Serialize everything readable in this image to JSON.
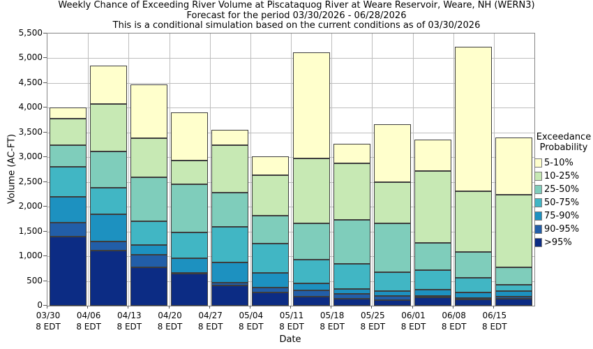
{
  "chart_data": {
    "type": "bar",
    "stacked": true,
    "title_lines": [
      "Weekly Chance of Exceeding River Volume at Piscataquog River at Weare Reservoir, Weare, NH (WERN3)",
      "Forecast for the period 03/30/2026 - 06/28/2026",
      "This is a conditional simulation based on the current conditions as of 03/30/2026"
    ],
    "xlabel": "Date",
    "ylabel": "Volume (AC-FT)",
    "ylim": [
      0,
      5500
    ],
    "yticks": [
      0,
      500,
      1000,
      1500,
      2000,
      2500,
      3000,
      3500,
      4000,
      4500,
      5000,
      5500
    ],
    "grid": true,
    "legend_position": "right",
    "legend_title_lines": [
      "Exceedance",
      "Probability"
    ],
    "legend": [
      {
        "label": "5-10%",
        "color": "#ffffcc"
      },
      {
        "label": "10-25%",
        "color": "#c7e9b4"
      },
      {
        "label": "25-50%",
        "color": "#7fcdbb"
      },
      {
        "label": "50-75%",
        "color": "#41b6c4"
      },
      {
        "label": "75-90%",
        "color": "#1d91c0"
      },
      {
        "label": "90-95%",
        "color": "#225ea8"
      },
      {
        "label": ">95%",
        "color": "#0c2c84"
      }
    ],
    "categories": [
      {
        "date": "03/30",
        "time": "8 EDT"
      },
      {
        "date": "04/06",
        "time": "8 EDT"
      },
      {
        "date": "04/13",
        "time": "8 EDT"
      },
      {
        "date": "04/20",
        "time": "8 EDT"
      },
      {
        "date": "04/27",
        "time": "8 EDT"
      },
      {
        "date": "05/04",
        "time": "8 EDT"
      },
      {
        "date": "05/11",
        "time": "8 EDT"
      },
      {
        "date": "05/18",
        "time": "8 EDT"
      },
      {
        "date": "05/25",
        "time": "8 EDT"
      },
      {
        "date": "06/01",
        "time": "8 EDT"
      },
      {
        "date": "06/08",
        "time": "8 EDT"
      },
      {
        "date": "06/15",
        "time": "8 EDT"
      }
    ],
    "series": [
      {
        "name": ">95%",
        "color": "#0c2c84",
        "values": [
          1400,
          1110,
          770,
          645,
          405,
          265,
          180,
          140,
          120,
          170,
          130,
          145
        ]
      },
      {
        "name": "90-95%",
        "color": "#225ea8",
        "values": [
          280,
          190,
          260,
          25,
          55,
          105,
          130,
          95,
          80,
          30,
          30,
          35
        ]
      },
      {
        "name": "75-90%",
        "color": "#1d91c0",
        "values": [
          520,
          550,
          200,
          290,
          415,
          300,
          140,
          105,
          100,
          130,
          105,
          110
        ]
      },
      {
        "name": "50-75%",
        "color": "#41b6c4",
        "values": [
          610,
          530,
          470,
          520,
          715,
          590,
          480,
          510,
          380,
          390,
          305,
          135
        ]
      },
      {
        "name": "25-50%",
        "color": "#7fcdbb",
        "values": [
          440,
          740,
          900,
          970,
          690,
          560,
          730,
          890,
          980,
          550,
          520,
          355
        ]
      },
      {
        "name": "10-25%",
        "color": "#c7e9b4",
        "values": [
          530,
          950,
          790,
          490,
          960,
          820,
          1310,
          1140,
          840,
          1450,
          1220,
          1460
        ]
      },
      {
        "name": "5-10%",
        "color": "#ffffcc",
        "values": [
          220,
          780,
          1080,
          970,
          320,
          380,
          2150,
          390,
          1170,
          630,
          2920,
          1160
        ]
      }
    ],
    "bar_totals": [
      4000,
      4850,
      4470,
      3910,
      3560,
      3020,
      5120,
      3270,
      3670,
      3350,
      5230,
      3400
    ]
  }
}
